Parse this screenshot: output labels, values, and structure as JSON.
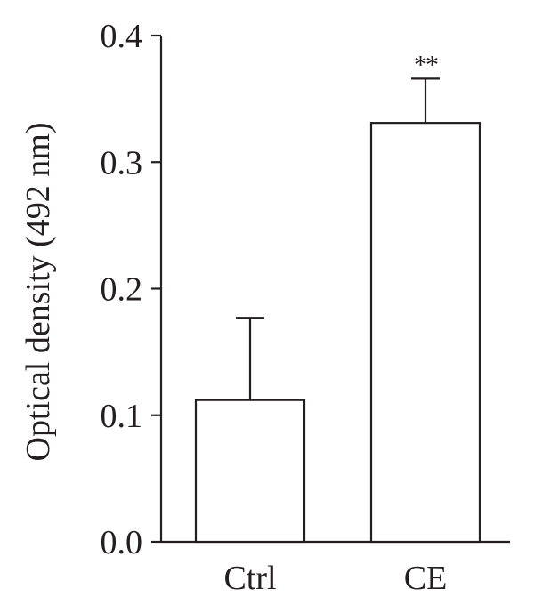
{
  "chart_data": {
    "type": "bar",
    "categories": [
      "Ctrl",
      "CE"
    ],
    "values": [
      0.112,
      0.331
    ],
    "error_upper": [
      0.177,
      0.366
    ],
    "annotations": [
      "",
      "**"
    ],
    "xlabel": "",
    "ylabel": "Optical density (492 nm)",
    "ylim": [
      0.0,
      0.4
    ],
    "yticks": [
      0.0,
      0.1,
      0.2,
      0.3,
      0.4
    ],
    "ytick_labels": [
      "0.0",
      "0.1",
      "0.2",
      "0.3",
      "0.4"
    ],
    "grid": false,
    "bar_fill": "#ffffff",
    "stroke_color": "#231f20"
  }
}
